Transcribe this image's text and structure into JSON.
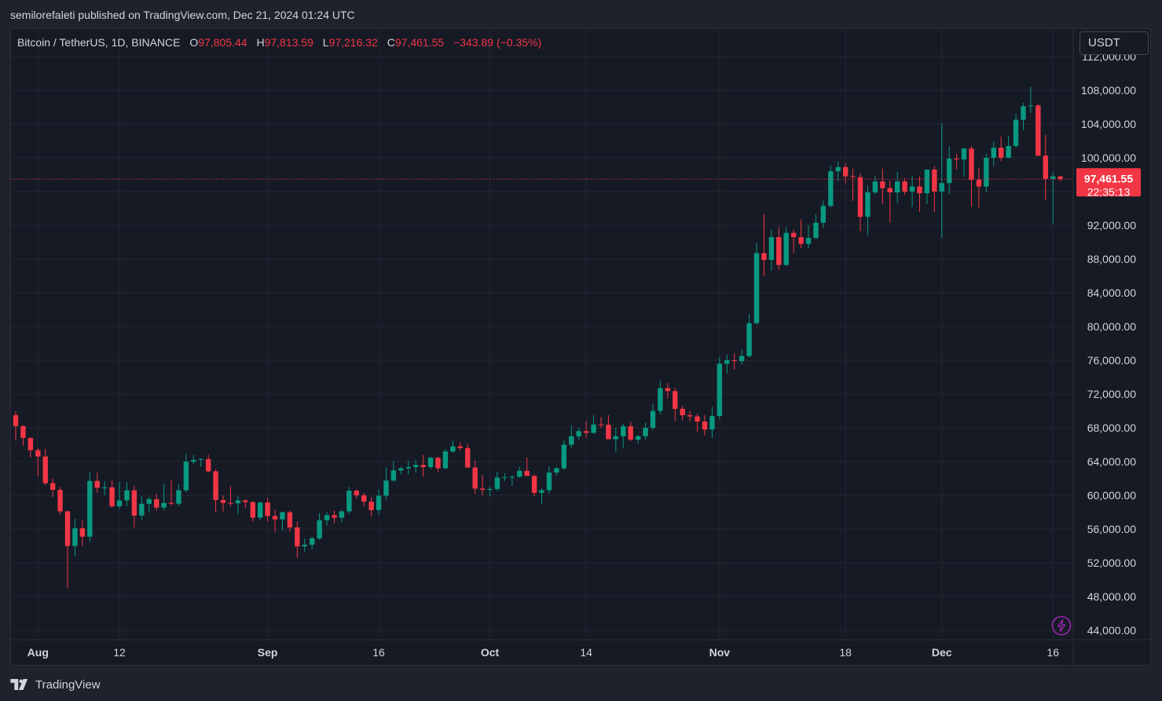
{
  "header": {
    "published_text": "semilorefaleti published on TradingView.com, Dec 21, 2024 01:24 UTC"
  },
  "legend": {
    "symbol": "Bitcoin / TetherUS, 1D, BINANCE",
    "open_label": "O",
    "open": "97,805.44",
    "high_label": "H",
    "high": "97,813.59",
    "low_label": "L",
    "low": "97,216.32",
    "close_label": "C",
    "close": "97,461.55",
    "change": "−343.89 (−0.35%)"
  },
  "currency_button": "USDT",
  "price_tag": {
    "price": "97,461.55",
    "countdown": "22:35:13"
  },
  "footer": {
    "brand": "TradingView"
  },
  "icons": {
    "alert": "lightning-bolt-icon",
    "logo": "tradingview-logo-icon"
  },
  "colors": {
    "up": "#089981",
    "down": "#f23645",
    "background": "#161a25",
    "grid": "#232632",
    "text": "#d1d4dc"
  },
  "chart_data": {
    "type": "candlestick",
    "title": "",
    "xlabel": "",
    "ylabel": "",
    "ylim": [
      43000,
      113000
    ],
    "y_ticks": [
      44000,
      48000,
      52000,
      56000,
      60000,
      64000,
      68000,
      72000,
      76000,
      80000,
      84000,
      88000,
      92000,
      96000,
      100000,
      104000,
      108000,
      112000
    ],
    "y_tick_labels": [
      "44,000.00",
      "48,000.00",
      "52,000.00",
      "56,000.00",
      "60,000.00",
      "64,000.00",
      "68,000.00",
      "72,000.00",
      "76,000.00",
      "80,000.00",
      "84,000.00",
      "88,000.00",
      "92,000.00",
      "96,000.00",
      "100,000.00",
      "104,000.00",
      "108,000.00",
      "112,000.00"
    ],
    "x_ticks": [
      {
        "label": "Aug",
        "date": "2024-08-01",
        "major": true
      },
      {
        "label": "12",
        "date": "2024-08-12",
        "major": false
      },
      {
        "label": "Sep",
        "date": "2024-09-01",
        "major": true
      },
      {
        "label": "16",
        "date": "2024-09-16",
        "major": false
      },
      {
        "label": "Oct",
        "date": "2024-10-01",
        "major": true
      },
      {
        "label": "14",
        "date": "2024-10-14",
        "major": false
      },
      {
        "label": "Nov",
        "date": "2024-11-01",
        "major": true
      },
      {
        "label": "18",
        "date": "2024-11-18",
        "major": false
      },
      {
        "label": "Dec",
        "date": "2024-12-01",
        "major": true
      },
      {
        "label": "16",
        "date": "2024-12-16",
        "major": false
      }
    ],
    "last_price": 97461.55,
    "grid": true,
    "series": [
      {
        "name": "BTCUSDT",
        "first_date": "2024-07-29",
        "ohlc": [
          [
            69500,
            70000,
            66500,
            68200
          ],
          [
            68200,
            68300,
            65900,
            66800
          ],
          [
            66800,
            66900,
            64500,
            65350
          ],
          [
            65350,
            65600,
            62300,
            64600
          ],
          [
            64600,
            65500,
            61200,
            61450
          ],
          [
            61450,
            62000,
            59800,
            60650
          ],
          [
            60650,
            61000,
            57700,
            58100
          ],
          [
            58100,
            58200,
            49000,
            54000
          ],
          [
            54000,
            57200,
            52800,
            56100
          ],
          [
            56100,
            57000,
            54000,
            55100
          ],
          [
            55100,
            62800,
            54500,
            61700
          ],
          [
            61700,
            62700,
            60300,
            60900
          ],
          [
            60900,
            61700,
            60000,
            60950
          ],
          [
            60950,
            61800,
            58500,
            58700
          ],
          [
            58700,
            61600,
            58400,
            59400
          ],
          [
            59400,
            61600,
            58700,
            60600
          ],
          [
            60600,
            61100,
            56200,
            57600
          ],
          [
            57600,
            59900,
            57100,
            59000
          ],
          [
            59000,
            59800,
            58000,
            59550
          ],
          [
            59550,
            60200,
            58200,
            58550
          ],
          [
            58550,
            61400,
            58200,
            59100
          ],
          [
            59100,
            61800,
            58800,
            59000
          ],
          [
            59000,
            61300,
            58700,
            60600
          ],
          [
            60600,
            64900,
            60400,
            64000
          ],
          [
            64000,
            64800,
            63700,
            64200
          ],
          [
            64200,
            64400,
            63400,
            64300
          ],
          [
            64300,
            64800,
            62700,
            62850
          ],
          [
            62850,
            63100,
            58000,
            59450
          ],
          [
            59450,
            60000,
            58100,
            59100
          ],
          [
            59100,
            61100,
            58700,
            59050
          ],
          [
            59050,
            59900,
            57800,
            59400
          ],
          [
            59400,
            59500,
            58500,
            59200
          ],
          [
            59200,
            59300,
            56900,
            57350
          ],
          [
            57350,
            59200,
            57100,
            59150
          ],
          [
            59150,
            59700,
            56900,
            57550
          ],
          [
            57550,
            58300,
            55600,
            57150
          ],
          [
            57150,
            58100,
            55800,
            58000
          ],
          [
            58000,
            58200,
            55700,
            56200
          ],
          [
            56200,
            56900,
            52600,
            53950
          ],
          [
            53950,
            54900,
            53300,
            54150
          ],
          [
            54150,
            55100,
            53600,
            54900
          ],
          [
            54900,
            57900,
            54700,
            57050
          ],
          [
            57050,
            58000,
            56400,
            57650
          ],
          [
            57650,
            58200,
            56700,
            57350
          ],
          [
            57350,
            58300,
            56800,
            58100
          ],
          [
            58100,
            61000,
            57800,
            60550
          ],
          [
            60550,
            60700,
            59600,
            60000
          ],
          [
            60000,
            60300,
            58700,
            59250
          ],
          [
            59250,
            59800,
            57500,
            58250
          ],
          [
            58250,
            60700,
            57700,
            59950
          ],
          [
            59950,
            63300,
            59500,
            61750
          ],
          [
            61750,
            64100,
            61600,
            62950
          ],
          [
            62950,
            63400,
            62500,
            63200
          ],
          [
            63200,
            64100,
            62500,
            63350
          ],
          [
            63350,
            64200,
            62700,
            63600
          ],
          [
            63600,
            64800,
            62200,
            63350
          ],
          [
            63350,
            64600,
            63100,
            64450
          ],
          [
            64450,
            64600,
            62700,
            63200
          ],
          [
            63200,
            65500,
            63100,
            65200
          ],
          [
            65200,
            66500,
            65000,
            65800
          ],
          [
            65800,
            66300,
            65300,
            65600
          ],
          [
            65600,
            66100,
            63400,
            63300
          ],
          [
            63300,
            64100,
            60200,
            60800
          ],
          [
            60800,
            62400,
            60000,
            60650
          ],
          [
            60650,
            61000,
            59900,
            60750
          ],
          [
            60750,
            62800,
            60500,
            62100
          ],
          [
            62100,
            62600,
            61700,
            62150
          ],
          [
            62150,
            62400,
            61100,
            62200
          ],
          [
            62200,
            63400,
            62100,
            62900
          ],
          [
            62900,
            64500,
            62400,
            62300
          ],
          [
            62300,
            62500,
            59900,
            60300
          ],
          [
            60300,
            60800,
            59000,
            60600
          ],
          [
            60600,
            63400,
            60200,
            62700
          ],
          [
            62700,
            63400,
            62300,
            63200
          ],
          [
            63200,
            66500,
            63000,
            66000
          ],
          [
            66000,
            68300,
            65600,
            67000
          ],
          [
            67000,
            68000,
            66600,
            67600
          ],
          [
            67600,
            68800,
            66800,
            67400
          ],
          [
            67400,
            69500,
            67300,
            68400
          ],
          [
            68400,
            69300,
            68000,
            68350
          ],
          [
            68350,
            69500,
            66800,
            66650
          ],
          [
            66650,
            68000,
            65100,
            67000
          ],
          [
            67000,
            68500,
            65600,
            68200
          ],
          [
            68200,
            68700,
            66400,
            66600
          ],
          [
            66600,
            67200,
            66100,
            67000
          ],
          [
            67000,
            68600,
            66600,
            68000
          ],
          [
            68000,
            70800,
            67700,
            70000
          ],
          [
            70000,
            73600,
            69600,
            72700
          ],
          [
            72700,
            73300,
            71500,
            72350
          ],
          [
            72350,
            72700,
            68800,
            70250
          ],
          [
            70250,
            70600,
            68900,
            69500
          ],
          [
            69500,
            70000,
            68800,
            69350
          ],
          [
            69350,
            69700,
            67500,
            68750
          ],
          [
            68750,
            69500,
            67100,
            67800
          ],
          [
            67800,
            70500,
            66800,
            69400
          ],
          [
            69400,
            76400,
            69000,
            75600
          ],
          [
            75600,
            76700,
            74400,
            76000
          ],
          [
            76000,
            76800,
            74900,
            75900
          ],
          [
            75900,
            77300,
            75500,
            76500
          ],
          [
            76500,
            81500,
            76300,
            80400
          ],
          [
            80400,
            89900,
            80200,
            88700
          ],
          [
            88700,
            93300,
            86000,
            87900
          ],
          [
            87900,
            91500,
            86600,
            90600
          ],
          [
            90600,
            91800,
            86700,
            87300
          ],
          [
            87300,
            91800,
            87200,
            91100
          ],
          [
            91100,
            91500,
            88700,
            90600
          ],
          [
            90600,
            92700,
            89300,
            89800
          ],
          [
            89800,
            92000,
            89300,
            90500
          ],
          [
            90500,
            93300,
            90400,
            92300
          ],
          [
            92300,
            94900,
            91700,
            94300
          ],
          [
            94300,
            99100,
            94100,
            98400
          ],
          [
            98400,
            99600,
            97200,
            98900
          ],
          [
            98900,
            99300,
            97000,
            97800
          ],
          [
            97800,
            98700,
            94900,
            97700
          ],
          [
            97700,
            98200,
            91300,
            93000
          ],
          [
            93000,
            96700,
            90800,
            95900
          ],
          [
            95900,
            97900,
            95700,
            97200
          ],
          [
            97200,
            98700,
            94500,
            96400
          ],
          [
            96400,
            97300,
            92300,
            95900
          ],
          [
            95900,
            98300,
            94600,
            97200
          ],
          [
            97200,
            97600,
            95600,
            96000
          ],
          [
            96000,
            97900,
            94200,
            96600
          ],
          [
            96600,
            97800,
            93600,
            95800
          ],
          [
            95800,
            98300,
            94500,
            98600
          ],
          [
            98600,
            99000,
            93600,
            96000
          ],
          [
            96000,
            104100,
            90500,
            97000
          ],
          [
            97000,
            101300,
            95700,
            99900
          ],
          [
            99900,
            100500,
            98600,
            99800
          ],
          [
            99800,
            101200,
            97800,
            101100
          ],
          [
            101100,
            101400,
            94200,
            97400
          ],
          [
            97400,
            98800,
            94100,
            96600
          ],
          [
            96600,
            100500,
            95900,
            100000
          ],
          [
            100000,
            101900,
            99000,
            101200
          ],
          [
            101200,
            102500,
            99600,
            100000
          ],
          [
            100000,
            102600,
            100000,
            101400
          ],
          [
            101400,
            105200,
            101200,
            104500
          ],
          [
            104500,
            106500,
            103300,
            106100
          ],
          [
            106100,
            108400,
            105300,
            106200
          ],
          [
            106200,
            106400,
            100200,
            100250
          ],
          [
            100250,
            102700,
            95000,
            97500
          ],
          [
            97500,
            98300,
            92200,
            97800
          ],
          [
            97800,
            97813.59,
            97216.32,
            97461.55
          ]
        ]
      }
    ]
  }
}
